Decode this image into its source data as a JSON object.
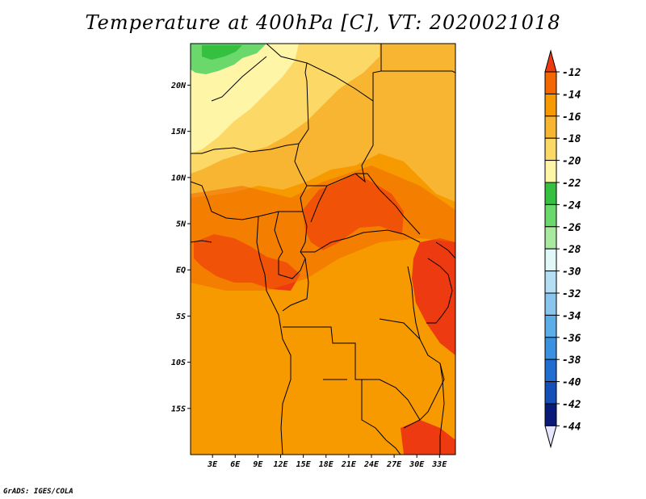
{
  "title": "Temperature at 400hPa [C], VT: 2020021018",
  "credit": "GrADS: IGES/COLA",
  "map": {
    "variable": "Temperature",
    "level": "400hPa",
    "units": "C",
    "valid_time": "2020021018",
    "lat_labels": [
      "20N",
      "15N",
      "10N",
      "5N",
      "EQ",
      "5S",
      "10S",
      "15S"
    ],
    "lat_values": [
      20,
      15,
      10,
      5,
      0,
      -5,
      -10,
      -15
    ],
    "lon_labels": [
      "3E",
      "6E",
      "9E",
      "12E",
      "15E",
      "18E",
      "21E",
      "24E",
      "27E",
      "30E",
      "33E"
    ],
    "lon_values": [
      3,
      6,
      9,
      12,
      15,
      18,
      21,
      24,
      27,
      30,
      33
    ],
    "lat_range": [
      -20,
      24.5
    ],
    "lon_range": [
      0.1,
      35.1
    ]
  },
  "colorbar": {
    "labels": [
      "-12",
      "-14",
      "-16",
      "-18",
      "-20",
      "-22",
      "-24",
      "-26",
      "-28",
      "-30",
      "-32",
      "-34",
      "-36",
      "-38",
      "-40",
      "-42",
      "-44"
    ],
    "colors": [
      "#ee3a10",
      "#f36800",
      "#f79a00",
      "#f7b531",
      "#fcd966",
      "#fff5a6",
      "#35c040",
      "#6ad86a",
      "#a8eaa0",
      "#e0f8f8",
      "#b4def4",
      "#89c6ee",
      "#5caee8",
      "#3991e0",
      "#1f6ed0",
      "#1450b8",
      "#0a1a78",
      "#e6e6ff"
    ]
  }
}
